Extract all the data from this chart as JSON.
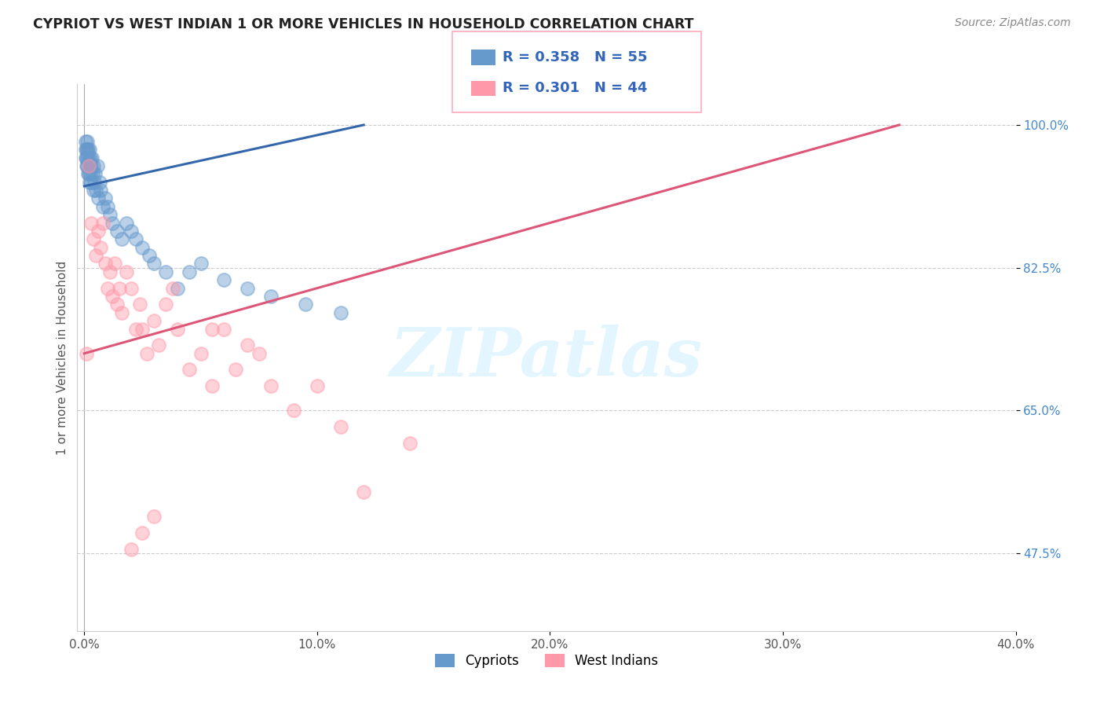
{
  "title": "CYPRIOT VS WEST INDIAN 1 OR MORE VEHICLES IN HOUSEHOLD CORRELATION CHART",
  "source": "Source: ZipAtlas.com",
  "ylabel": "1 or more Vehicles in Household",
  "xlim": [
    -0.3,
    40.0
  ],
  "ylim": [
    38.0,
    105.0
  ],
  "xticks": [
    0.0,
    10.0,
    20.0,
    30.0,
    40.0
  ],
  "yticks": [
    47.5,
    65.0,
    82.5,
    100.0
  ],
  "ytick_labels": [
    "47.5%",
    "65.0%",
    "82.5%",
    "100.0%"
  ],
  "xtick_labels": [
    "0.0%",
    "10.0%",
    "20.0%",
    "30.0%",
    "40.0%"
  ],
  "cypriot_color": "#6699CC",
  "westindian_color": "#FF99AA",
  "cypriot_line_color": "#3366AA",
  "westindian_line_color": "#DD5577",
  "cypriot_R": 0.358,
  "cypriot_N": 55,
  "westindian_R": 0.301,
  "westindian_N": 44,
  "watermark_text": "ZIPatlas",
  "cypriot_x": [
    0.05,
    0.06,
    0.07,
    0.08,
    0.09,
    0.1,
    0.11,
    0.12,
    0.13,
    0.14,
    0.15,
    0.17,
    0.18,
    0.19,
    0.2,
    0.21,
    0.22,
    0.23,
    0.25,
    0.27,
    0.28,
    0.3,
    0.32,
    0.35,
    0.38,
    0.4,
    0.42,
    0.45,
    0.5,
    0.55,
    0.6,
    0.65,
    0.7,
    0.8,
    0.9,
    1.0,
    1.1,
    1.2,
    1.4,
    1.6,
    1.8,
    2.0,
    2.2,
    2.5,
    2.8,
    3.0,
    3.5,
    4.0,
    4.5,
    5.0,
    6.0,
    7.0,
    8.0,
    9.5,
    11.0
  ],
  "cypriot_y": [
    96,
    97,
    98,
    95,
    97,
    96,
    98,
    97,
    95,
    96,
    94,
    97,
    95,
    96,
    94,
    97,
    95,
    93,
    96,
    94,
    95,
    93,
    96,
    94,
    92,
    95,
    93,
    94,
    92,
    95,
    91,
    93,
    92,
    90,
    91,
    90,
    89,
    88,
    87,
    86,
    88,
    87,
    86,
    85,
    84,
    83,
    82,
    80,
    82,
    83,
    81,
    80,
    79,
    78,
    77
  ],
  "westindian_x": [
    0.1,
    0.2,
    0.3,
    0.4,
    0.5,
    0.6,
    0.7,
    0.8,
    0.9,
    1.0,
    1.1,
    1.2,
    1.3,
    1.4,
    1.5,
    1.6,
    1.8,
    2.0,
    2.2,
    2.4,
    2.5,
    2.7,
    3.0,
    3.2,
    3.5,
    3.8,
    4.0,
    4.5,
    5.0,
    5.5,
    6.0,
    6.5,
    7.0,
    7.5,
    8.0,
    9.0,
    10.0,
    11.0,
    12.0,
    14.0,
    2.0,
    2.5,
    3.0,
    5.5
  ],
  "westindian_y": [
    72,
    95,
    88,
    86,
    84,
    87,
    85,
    88,
    83,
    80,
    82,
    79,
    83,
    78,
    80,
    77,
    82,
    80,
    75,
    78,
    75,
    72,
    76,
    73,
    78,
    80,
    75,
    70,
    72,
    68,
    75,
    70,
    73,
    72,
    68,
    65,
    68,
    63,
    55,
    61,
    48,
    50,
    52,
    75
  ],
  "blue_line_x0": 0.0,
  "blue_line_y0": 92.5,
  "blue_line_x1": 12.0,
  "blue_line_y1": 100.0,
  "pink_line_x0": 0.0,
  "pink_line_y0": 72.0,
  "pink_line_x1": 35.0,
  "pink_line_y1": 100.0
}
